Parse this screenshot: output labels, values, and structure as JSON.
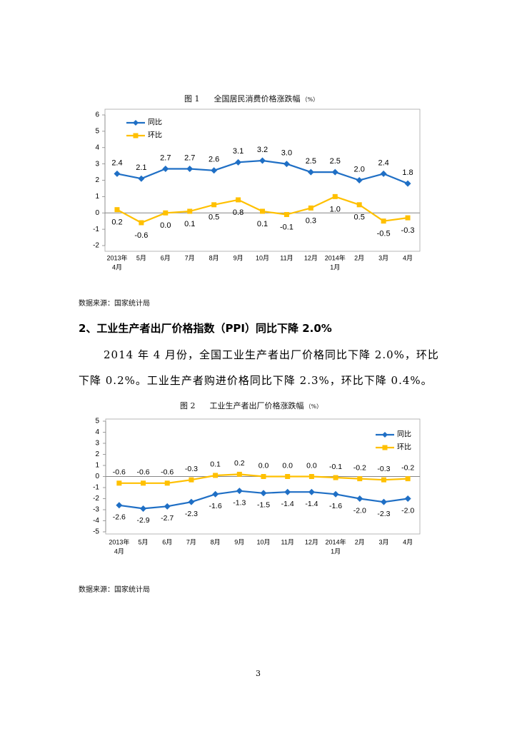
{
  "chart_data": [
    {
      "type": "line",
      "figure_label": "图 1",
      "title": "全国居民消费价格涨跌幅",
      "unit": "（%）",
      "categories": [
        [
          "2013年",
          "4月"
        ],
        [
          "5月"
        ],
        [
          "6月"
        ],
        [
          "7月"
        ],
        [
          "8月"
        ],
        [
          "9月"
        ],
        [
          "10月"
        ],
        [
          "11月"
        ],
        [
          "12月"
        ],
        [
          "2014年",
          "1月"
        ],
        [
          "2月"
        ],
        [
          "3月"
        ],
        [
          "4月"
        ]
      ],
      "ylim": [
        -2,
        6
      ],
      "legend": "top-left",
      "series": [
        {
          "name": "同比",
          "color": "#1F6FC5",
          "values": [
            2.4,
            2.1,
            2.7,
            2.7,
            2.6,
            3.1,
            3.2,
            3.0,
            2.5,
            2.5,
            2.0,
            2.4,
            1.8
          ]
        },
        {
          "name": "环比",
          "color": "#FFC000",
          "values": [
            0.2,
            -0.6,
            0.0,
            0.1,
            0.5,
            0.8,
            0.1,
            -0.1,
            0.3,
            1.0,
            0.5,
            -0.5,
            -0.3
          ]
        }
      ],
      "source": "数据来源：国家统计局"
    },
    {
      "type": "line",
      "figure_label": "图 2",
      "title": "工业生产者出厂价格涨跌幅",
      "unit": "（%）",
      "categories": [
        [
          "2013年",
          "4月"
        ],
        [
          "5月"
        ],
        [
          "6月"
        ],
        [
          "7月"
        ],
        [
          "8月"
        ],
        [
          "9月"
        ],
        [
          "10月"
        ],
        [
          "11月"
        ],
        [
          "12月"
        ],
        [
          "2014年",
          "1月"
        ],
        [
          "2月"
        ],
        [
          "3月"
        ],
        [
          "4月"
        ]
      ],
      "ylim": [
        -5,
        5
      ],
      "legend": "top-right",
      "series": [
        {
          "name": "同比",
          "color": "#1F6FC5",
          "values": [
            -2.6,
            -2.9,
            -2.7,
            -2.3,
            -1.6,
            -1.3,
            -1.5,
            -1.4,
            -1.4,
            -1.6,
            -2.0,
            -2.3,
            -2.0
          ]
        },
        {
          "name": "环比",
          "color": "#FFC000",
          "values": [
            -0.6,
            -0.6,
            -0.6,
            -0.3,
            0.1,
            0.2,
            0.0,
            0.0,
            0.0,
            -0.1,
            -0.2,
            -0.3,
            -0.2
          ]
        }
      ],
      "source": "数据来源：国家统计局"
    }
  ],
  "section": {
    "heading": "2、工业生产者出厂价格指数（PPI）同比下降 2.0%",
    "lines": [
      "2014 年 4 月份，全国工业生产者出厂价格同比下降 2.0%，环比",
      "下降 0.2%。工业生产者购进价格同比下降 2.3%，环比下降 0.4%。"
    ]
  },
  "page_number": "3"
}
